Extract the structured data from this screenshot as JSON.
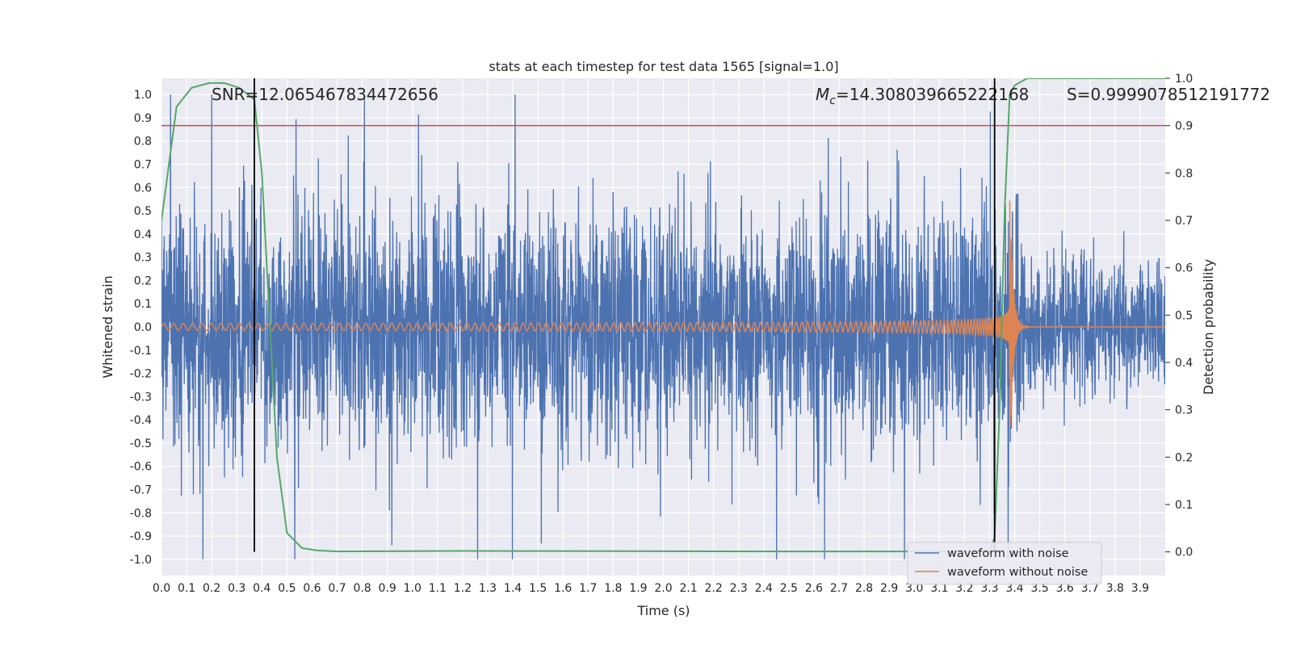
{
  "chart_data": {
    "type": "line",
    "title": "stats at each timestep for test data 1565 [signal=1.0]",
    "xlabel": "Time (s)",
    "ylabel": "Whitened strain",
    "y2label": "Detection probability",
    "xlim": [
      0.0,
      4.0
    ],
    "ylim": [
      -1.07,
      1.07
    ],
    "y2lim": [
      -0.05,
      1.0
    ],
    "x_ticks": [
      "0.0",
      "0.1",
      "0.2",
      "0.3",
      "0.4",
      "0.5",
      "0.6",
      "0.7",
      "0.8",
      "0.9",
      "1.0",
      "1.1",
      "1.2",
      "1.3",
      "1.4",
      "1.5",
      "1.6",
      "1.7",
      "1.8",
      "1.9",
      "2.0",
      "2.1",
      "2.2",
      "2.3",
      "2.4",
      "2.5",
      "2.6",
      "2.7",
      "2.8",
      "2.9",
      "3.0",
      "3.1",
      "3.2",
      "3.3",
      "3.4",
      "3.5",
      "3.6",
      "3.7",
      "3.8",
      "3.9"
    ],
    "y_ticks": [
      "1.0",
      "0.9",
      "0.8",
      "0.7",
      "0.6",
      "0.5",
      "0.4",
      "0.3",
      "0.2",
      "0.1",
      "0.0",
      "-0.1",
      "-0.2",
      "-0.3",
      "-0.4",
      "-0.5",
      "-0.6",
      "-0.7",
      "-0.8",
      "-0.9",
      "-1.0"
    ],
    "y2_ticks": [
      "1.0",
      "0.9",
      "0.8",
      "0.7",
      "0.6",
      "0.5",
      "0.4",
      "0.3",
      "0.2",
      "0.1",
      "0.0"
    ],
    "annotations": {
      "snr": "SNR=12.065467834472656",
      "mc_symbol": "M",
      "mc_sub": "c",
      "mc_value": "=14.308039665222168",
      "s": "S=0.9999078512191772"
    },
    "vlines_x": [
      0.37,
      3.32
    ],
    "threshold_y2": 0.9,
    "series": [
      {
        "name": "waveform with noise",
        "color": "#4c72b0",
        "description_values": "noise amplitude roughly within ±0.5 with peaks near ±0.9"
      },
      {
        "name": "waveform without noise",
        "color": "#dd8452",
        "chirp": {
          "start_freq_hz": 26,
          "merger_time": 3.38,
          "start_amp": 0.015,
          "peak_amp": 0.64
        }
      },
      {
        "name": "detection probability",
        "color": "#55a868",
        "axis": "right",
        "x": [
          0.0,
          0.02,
          0.06,
          0.12,
          0.19,
          0.25,
          0.31,
          0.37,
          0.4,
          0.43,
          0.46,
          0.5,
          0.56,
          0.62,
          0.7,
          1.2,
          2.5,
          3.3,
          3.32,
          3.34,
          3.36,
          3.38,
          3.4,
          3.45,
          4.0
        ],
        "values": [
          0.7,
          0.78,
          0.94,
          0.98,
          0.99,
          0.99,
          0.98,
          0.955,
          0.8,
          0.5,
          0.2,
          0.04,
          0.008,
          0.003,
          0.001,
          0.002,
          0.001,
          0.001,
          0.03,
          0.3,
          0.72,
          0.965,
          0.985,
          1.0,
          1.0
        ]
      }
    ],
    "legend": {
      "placement": "lower-right",
      "entries": [
        "waveform with noise",
        "waveform without noise"
      ]
    },
    "colors": {
      "background": "#eaeaf2",
      "grid": "#ffffff",
      "threshold": "#c44e52",
      "vline": "#000000"
    }
  }
}
